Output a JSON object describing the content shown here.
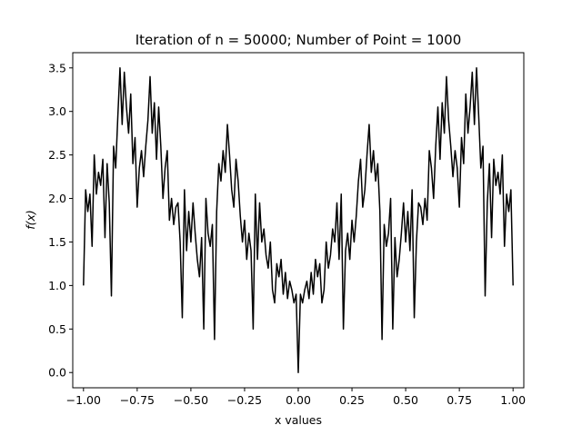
{
  "chart_data": {
    "type": "line",
    "title": "Iteration of n = 50000; Number of Point = 1000",
    "xlabel": "x values",
    "ylabel": "f(x)",
    "xlim": [
      -1.05,
      1.05
    ],
    "ylim": [
      -0.175,
      3.675
    ],
    "xticks": [
      -1.0,
      -0.75,
      -0.5,
      -0.25,
      0.0,
      0.25,
      0.5,
      0.75,
      1.0
    ],
    "xtick_labels": [
      "−1.00",
      "−0.75",
      "−0.50",
      "−0.25",
      "0.00",
      "0.25",
      "0.50",
      "0.75",
      "1.00"
    ],
    "yticks": [
      0.0,
      0.5,
      1.0,
      1.5,
      2.0,
      2.5,
      3.0,
      3.5
    ],
    "ytick_labels": [
      "0.0",
      "0.5",
      "1.0",
      "1.5",
      "2.0",
      "2.5",
      "3.0",
      "3.5"
    ],
    "grid": false,
    "legend": "none",
    "line_color": "#000000",
    "series": [
      {
        "x": [
          -1.0,
          -0.99,
          -0.98,
          -0.97,
          -0.96,
          -0.95,
          -0.94,
          -0.93,
          -0.92,
          -0.91,
          -0.9,
          -0.89,
          -0.88,
          -0.87,
          -0.86,
          -0.85,
          -0.84,
          -0.83,
          -0.82,
          -0.81,
          -0.8,
          -0.79,
          -0.78,
          -0.77,
          -0.76,
          -0.75,
          -0.74,
          -0.73,
          -0.72,
          -0.71,
          -0.7,
          -0.69,
          -0.68,
          -0.67,
          -0.66,
          -0.65,
          -0.64,
          -0.63,
          -0.62,
          -0.61,
          -0.6,
          -0.59,
          -0.58,
          -0.57,
          -0.56,
          -0.55,
          -0.54,
          -0.53,
          -0.52,
          -0.51,
          -0.5,
          -0.49,
          -0.48,
          -0.47,
          -0.46,
          -0.45,
          -0.44,
          -0.43,
          -0.42,
          -0.41,
          -0.4,
          -0.39,
          -0.38,
          -0.37,
          -0.36,
          -0.35,
          -0.34,
          -0.33,
          -0.32,
          -0.31,
          -0.3,
          -0.29,
          -0.28,
          -0.27,
          -0.26,
          -0.25,
          -0.24,
          -0.23,
          -0.22,
          -0.21,
          -0.2,
          -0.19,
          -0.18,
          -0.17,
          -0.16,
          -0.15,
          -0.14,
          -0.13,
          -0.12,
          -0.11,
          -0.1,
          -0.09,
          -0.08,
          -0.07,
          -0.06,
          -0.05,
          -0.04,
          -0.03,
          -0.02,
          -0.01,
          0.0,
          0.01,
          0.02,
          0.03,
          0.04,
          0.05,
          0.06,
          0.07,
          0.08,
          0.09,
          0.1,
          0.11,
          0.12,
          0.13,
          0.14,
          0.15,
          0.16,
          0.17,
          0.18,
          0.19,
          0.2,
          0.21,
          0.22,
          0.23,
          0.24,
          0.25,
          0.26,
          0.27,
          0.28,
          0.29,
          0.3,
          0.31,
          0.32,
          0.33,
          0.34,
          0.35,
          0.36,
          0.37,
          0.38,
          0.39,
          0.4,
          0.41,
          0.42,
          0.43,
          0.44,
          0.45,
          0.46,
          0.47,
          0.48,
          0.49,
          0.5,
          0.51,
          0.52,
          0.53,
          0.54,
          0.55,
          0.56,
          0.57,
          0.58,
          0.59,
          0.6,
          0.61,
          0.62,
          0.63,
          0.64,
          0.65,
          0.66,
          0.67,
          0.68,
          0.69,
          0.7,
          0.71,
          0.72,
          0.73,
          0.74,
          0.75,
          0.76,
          0.77,
          0.78,
          0.79,
          0.8,
          0.81,
          0.82,
          0.83,
          0.84,
          0.85,
          0.86,
          0.87,
          0.88,
          0.89,
          0.9,
          0.91,
          0.92,
          0.93,
          0.94,
          0.95,
          0.96,
          0.97,
          0.98,
          0.99,
          1.0
        ],
        "y": [
          1.0,
          2.1,
          1.85,
          2.05,
          1.45,
          2.5,
          2.05,
          2.3,
          2.15,
          2.45,
          1.55,
          2.4,
          1.95,
          0.88,
          2.6,
          2.35,
          2.95,
          3.5,
          2.85,
          3.45,
          3.05,
          2.75,
          3.2,
          2.4,
          2.7,
          1.9,
          2.35,
          2.55,
          2.25,
          2.6,
          2.9,
          3.4,
          2.75,
          3.1,
          2.45,
          3.05,
          2.6,
          2.0,
          2.35,
          2.55,
          1.75,
          2.0,
          1.7,
          1.9,
          1.95,
          1.5,
          0.63,
          2.1,
          1.4,
          1.85,
          1.5,
          1.95,
          1.6,
          1.3,
          1.1,
          1.55,
          0.5,
          2.0,
          1.6,
          1.45,
          1.7,
          0.38,
          1.85,
          2.4,
          2.2,
          2.55,
          2.3,
          2.85,
          2.5,
          2.1,
          1.9,
          2.45,
          2.2,
          1.8,
          1.5,
          1.75,
          1.3,
          1.6,
          1.4,
          0.5,
          2.05,
          1.3,
          1.95,
          1.5,
          1.65,
          1.35,
          1.2,
          1.5,
          0.95,
          0.8,
          1.25,
          1.1,
          1.3,
          0.9,
          1.15,
          0.85,
          1.05,
          0.95,
          0.8,
          0.9,
          0.0,
          0.9,
          0.8,
          0.95,
          1.05,
          0.85,
          1.15,
          0.9,
          1.3,
          1.1,
          1.25,
          0.8,
          0.95,
          1.5,
          1.2,
          1.35,
          1.65,
          1.5,
          1.95,
          1.3,
          2.05,
          0.5,
          1.4,
          1.6,
          1.3,
          1.75,
          1.5,
          1.8,
          2.2,
          2.45,
          1.9,
          2.1,
          2.5,
          2.85,
          2.3,
          2.55,
          2.2,
          2.4,
          1.85,
          0.38,
          1.7,
          1.45,
          1.6,
          2.0,
          0.5,
          1.55,
          1.1,
          1.3,
          1.6,
          1.95,
          1.5,
          1.85,
          1.4,
          2.1,
          0.63,
          1.5,
          1.95,
          1.9,
          1.7,
          2.0,
          1.75,
          2.55,
          2.35,
          2.0,
          2.6,
          3.05,
          2.45,
          3.1,
          2.75,
          3.4,
          2.9,
          2.6,
          2.25,
          2.55,
          2.35,
          1.9,
          2.7,
          2.4,
          3.2,
          2.75,
          3.05,
          3.45,
          2.85,
          3.5,
          2.95,
          2.35,
          2.6,
          0.88,
          1.95,
          2.4,
          1.55,
          2.45,
          2.15,
          2.3,
          2.05,
          2.5,
          1.45,
          2.05,
          1.85,
          2.1,
          1.0
        ]
      }
    ]
  }
}
